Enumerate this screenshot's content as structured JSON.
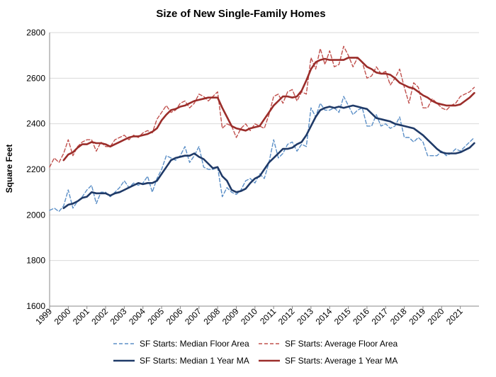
{
  "chart_data": {
    "type": "line",
    "title": "Size of New Single-Family Homes",
    "xlabel": "",
    "ylabel": "Square Feet",
    "ylim": [
      1600,
      2800
    ],
    "yticks": [
      1600,
      1800,
      2000,
      2200,
      2400,
      2600,
      2800
    ],
    "xlim": [
      1999,
      2022
    ],
    "xticks": [
      "1999",
      "2000",
      "2001",
      "2002",
      "2003",
      "2004",
      "2005",
      "2006",
      "2007",
      "2008",
      "2009",
      "2010",
      "2011",
      "2012",
      "2013",
      "2014",
      "2015",
      "2016",
      "2017",
      "2018",
      "2019",
      "2020",
      "2021"
    ],
    "grid": "horizontal",
    "legend": "bottom",
    "series": [
      {
        "name": "SF Starts: Median Floor Area",
        "color": "#5b8fc7",
        "style": "dashed",
        "x": [
          1999.0,
          1999.25,
          1999.5,
          1999.75,
          2000.0,
          2000.25,
          2000.5,
          2000.75,
          2001.0,
          2001.25,
          2001.5,
          2001.75,
          2002.0,
          2002.25,
          2002.5,
          2002.75,
          2003.0,
          2003.25,
          2003.5,
          2003.75,
          2004.0,
          2004.25,
          2004.5,
          2004.75,
          2005.0,
          2005.25,
          2005.5,
          2005.75,
          2006.0,
          2006.25,
          2006.5,
          2006.75,
          2007.0,
          2007.25,
          2007.5,
          2007.75,
          2008.0,
          2008.25,
          2008.5,
          2008.75,
          2009.0,
          2009.25,
          2009.5,
          2009.75,
          2010.0,
          2010.25,
          2010.5,
          2010.75,
          2011.0,
          2011.25,
          2011.5,
          2011.75,
          2012.0,
          2012.25,
          2012.5,
          2012.75,
          2013.0,
          2013.25,
          2013.5,
          2013.75,
          2014.0,
          2014.25,
          2014.5,
          2014.75,
          2015.0,
          2015.25,
          2015.5,
          2015.75,
          2016.0,
          2016.25,
          2016.5,
          2016.75,
          2017.0,
          2017.25,
          2017.5,
          2017.75,
          2018.0,
          2018.25,
          2018.5,
          2018.75,
          2019.0,
          2019.25,
          2019.5,
          2019.75,
          2020.0,
          2020.25,
          2020.5,
          2020.75,
          2021.0,
          2021.25,
          2021.5,
          2021.75
        ],
        "values": [
          2020,
          2030,
          2015,
          2040,
          2110,
          2030,
          2060,
          2080,
          2110,
          2130,
          2050,
          2100,
          2100,
          2080,
          2100,
          2120,
          2150,
          2120,
          2140,
          2130,
          2140,
          2170,
          2100,
          2160,
          2200,
          2260,
          2250,
          2240,
          2260,
          2300,
          2230,
          2260,
          2300,
          2210,
          2200,
          2200,
          2210,
          2080,
          2120,
          2100,
          2090,
          2110,
          2150,
          2160,
          2140,
          2180,
          2160,
          2230,
          2330,
          2250,
          2270,
          2310,
          2320,
          2280,
          2310,
          2300,
          2470,
          2430,
          2490,
          2460,
          2460,
          2470,
          2450,
          2520,
          2480,
          2440,
          2460,
          2470,
          2390,
          2390,
          2440,
          2390,
          2400,
          2380,
          2390,
          2430,
          2340,
          2340,
          2320,
          2340,
          2320,
          2260,
          2260,
          2260,
          2280,
          2260,
          2270,
          2290,
          2280,
          2300,
          2320,
          2340
        ]
      },
      {
        "name": "SF Starts: Average Floor Area",
        "color": "#c0504d",
        "style": "dashed",
        "x": [
          1999.0,
          1999.25,
          1999.5,
          1999.75,
          2000.0,
          2000.25,
          2000.5,
          2000.75,
          2001.0,
          2001.25,
          2001.5,
          2001.75,
          2002.0,
          2002.25,
          2002.5,
          2002.75,
          2003.0,
          2003.25,
          2003.5,
          2003.75,
          2004.0,
          2004.25,
          2004.5,
          2004.75,
          2005.0,
          2005.25,
          2005.5,
          2005.75,
          2006.0,
          2006.25,
          2006.5,
          2006.75,
          2007.0,
          2007.25,
          2007.5,
          2007.75,
          2008.0,
          2008.25,
          2008.5,
          2008.75,
          2009.0,
          2009.25,
          2009.5,
          2009.75,
          2010.0,
          2010.25,
          2010.5,
          2010.75,
          2011.0,
          2011.25,
          2011.5,
          2011.75,
          2012.0,
          2012.25,
          2012.5,
          2012.75,
          2013.0,
          2013.25,
          2013.5,
          2013.75,
          2014.0,
          2014.25,
          2014.5,
          2014.75,
          2015.0,
          2015.25,
          2015.5,
          2015.75,
          2016.0,
          2016.25,
          2016.5,
          2016.75,
          2017.0,
          2017.25,
          2017.5,
          2017.75,
          2018.0,
          2018.25,
          2018.5,
          2018.75,
          2019.0,
          2019.25,
          2019.5,
          2019.75,
          2020.0,
          2020.25,
          2020.5,
          2020.75,
          2021.0,
          2021.25,
          2021.5,
          2021.75
        ],
        "values": [
          2210,
          2250,
          2230,
          2270,
          2330,
          2260,
          2300,
          2320,
          2330,
          2330,
          2280,
          2320,
          2300,
          2300,
          2330,
          2340,
          2350,
          2330,
          2350,
          2340,
          2360,
          2370,
          2360,
          2420,
          2450,
          2480,
          2450,
          2460,
          2490,
          2500,
          2470,
          2490,
          2530,
          2520,
          2500,
          2520,
          2540,
          2380,
          2400,
          2390,
          2340,
          2380,
          2400,
          2370,
          2400,
          2390,
          2380,
          2440,
          2520,
          2530,
          2490,
          2540,
          2550,
          2500,
          2540,
          2530,
          2690,
          2640,
          2730,
          2660,
          2720,
          2650,
          2660,
          2740,
          2700,
          2650,
          2690,
          2670,
          2600,
          2610,
          2650,
          2620,
          2630,
          2570,
          2600,
          2640,
          2560,
          2490,
          2580,
          2560,
          2470,
          2470,
          2510,
          2490,
          2470,
          2460,
          2480,
          2490,
          2520,
          2530,
          2540,
          2560
        ]
      },
      {
        "name": "SF Starts: Median 1 Year MA",
        "color": "#1f3a68",
        "style": "solid",
        "x": [
          1999.75,
          2000.0,
          2000.25,
          2000.5,
          2000.75,
          2001.0,
          2001.25,
          2001.5,
          2001.75,
          2002.0,
          2002.25,
          2002.5,
          2002.75,
          2003.0,
          2003.25,
          2003.5,
          2003.75,
          2004.0,
          2004.25,
          2004.5,
          2004.75,
          2005.0,
          2005.25,
          2005.5,
          2005.75,
          2006.0,
          2006.25,
          2006.5,
          2006.75,
          2007.0,
          2007.25,
          2007.5,
          2007.75,
          2008.0,
          2008.25,
          2008.5,
          2008.75,
          2009.0,
          2009.25,
          2009.5,
          2009.75,
          2010.0,
          2010.25,
          2010.5,
          2010.75,
          2011.0,
          2011.25,
          2011.5,
          2011.75,
          2012.0,
          2012.25,
          2012.5,
          2012.75,
          2013.0,
          2013.25,
          2013.5,
          2013.75,
          2014.0,
          2014.25,
          2014.5,
          2014.75,
          2015.0,
          2015.25,
          2015.5,
          2015.75,
          2016.0,
          2016.25,
          2016.5,
          2016.75,
          2017.0,
          2017.25,
          2017.5,
          2017.75,
          2018.0,
          2018.25,
          2018.5,
          2018.75,
          2019.0,
          2019.25,
          2019.5,
          2019.75,
          2020.0,
          2020.25,
          2020.5,
          2020.75,
          2021.0,
          2021.25,
          2021.5,
          2021.75
        ],
        "values": [
          2030,
          2045,
          2050,
          2060,
          2075,
          2080,
          2100,
          2095,
          2095,
          2095,
          2085,
          2095,
          2100,
          2110,
          2120,
          2130,
          2140,
          2135,
          2140,
          2140,
          2150,
          2180,
          2210,
          2240,
          2250,
          2255,
          2260,
          2260,
          2270,
          2255,
          2245,
          2225,
          2205,
          2210,
          2170,
          2150,
          2110,
          2100,
          2105,
          2115,
          2140,
          2160,
          2170,
          2200,
          2230,
          2250,
          2270,
          2290,
          2290,
          2295,
          2310,
          2320,
          2350,
          2390,
          2430,
          2460,
          2470,
          2475,
          2470,
          2475,
          2470,
          2475,
          2480,
          2475,
          2470,
          2465,
          2445,
          2425,
          2420,
          2415,
          2410,
          2400,
          2395,
          2390,
          2385,
          2380,
          2365,
          2350,
          2330,
          2310,
          2290,
          2275,
          2270,
          2270,
          2270,
          2275,
          2285,
          2295,
          2315
        ]
      },
      {
        "name": "SF Starts: Average 1 Year MA",
        "color": "#9b2d2a",
        "style": "solid",
        "x": [
          1999.75,
          2000.0,
          2000.25,
          2000.5,
          2000.75,
          2001.0,
          2001.25,
          2001.5,
          2001.75,
          2002.0,
          2002.25,
          2002.5,
          2002.75,
          2003.0,
          2003.25,
          2003.5,
          2003.75,
          2004.0,
          2004.25,
          2004.5,
          2004.75,
          2005.0,
          2005.25,
          2005.5,
          2005.75,
          2006.0,
          2006.25,
          2006.5,
          2006.75,
          2007.0,
          2007.25,
          2007.5,
          2007.75,
          2008.0,
          2008.25,
          2008.5,
          2008.75,
          2009.0,
          2009.25,
          2009.5,
          2009.75,
          2010.0,
          2010.25,
          2010.5,
          2010.75,
          2011.0,
          2011.25,
          2011.5,
          2011.75,
          2012.0,
          2012.25,
          2012.5,
          2012.75,
          2013.0,
          2013.25,
          2013.5,
          2013.75,
          2014.0,
          2014.25,
          2014.5,
          2014.75,
          2015.0,
          2015.25,
          2015.5,
          2015.75,
          2016.0,
          2016.25,
          2016.5,
          2016.75,
          2017.0,
          2017.25,
          2017.5,
          2017.75,
          2018.0,
          2018.25,
          2018.5,
          2018.75,
          2019.0,
          2019.25,
          2019.5,
          2019.75,
          2020.0,
          2020.25,
          2020.5,
          2020.75,
          2021.0,
          2021.25,
          2021.5,
          2021.75
        ],
        "values": [
          2240,
          2265,
          2275,
          2295,
          2310,
          2310,
          2320,
          2315,
          2315,
          2310,
          2300,
          2310,
          2320,
          2330,
          2340,
          2345,
          2345,
          2350,
          2355,
          2365,
          2380,
          2415,
          2440,
          2460,
          2465,
          2475,
          2480,
          2490,
          2500,
          2505,
          2510,
          2515,
          2515,
          2515,
          2470,
          2430,
          2390,
          2380,
          2375,
          2370,
          2380,
          2385,
          2390,
          2420,
          2450,
          2480,
          2500,
          2520,
          2520,
          2515,
          2520,
          2545,
          2590,
          2640,
          2670,
          2680,
          2685,
          2680,
          2680,
          2680,
          2680,
          2690,
          2690,
          2690,
          2670,
          2650,
          2640,
          2625,
          2620,
          2620,
          2615,
          2600,
          2580,
          2570,
          2560,
          2555,
          2540,
          2525,
          2515,
          2500,
          2490,
          2485,
          2480,
          2480,
          2480,
          2485,
          2500,
          2515,
          2535
        ]
      }
    ]
  }
}
